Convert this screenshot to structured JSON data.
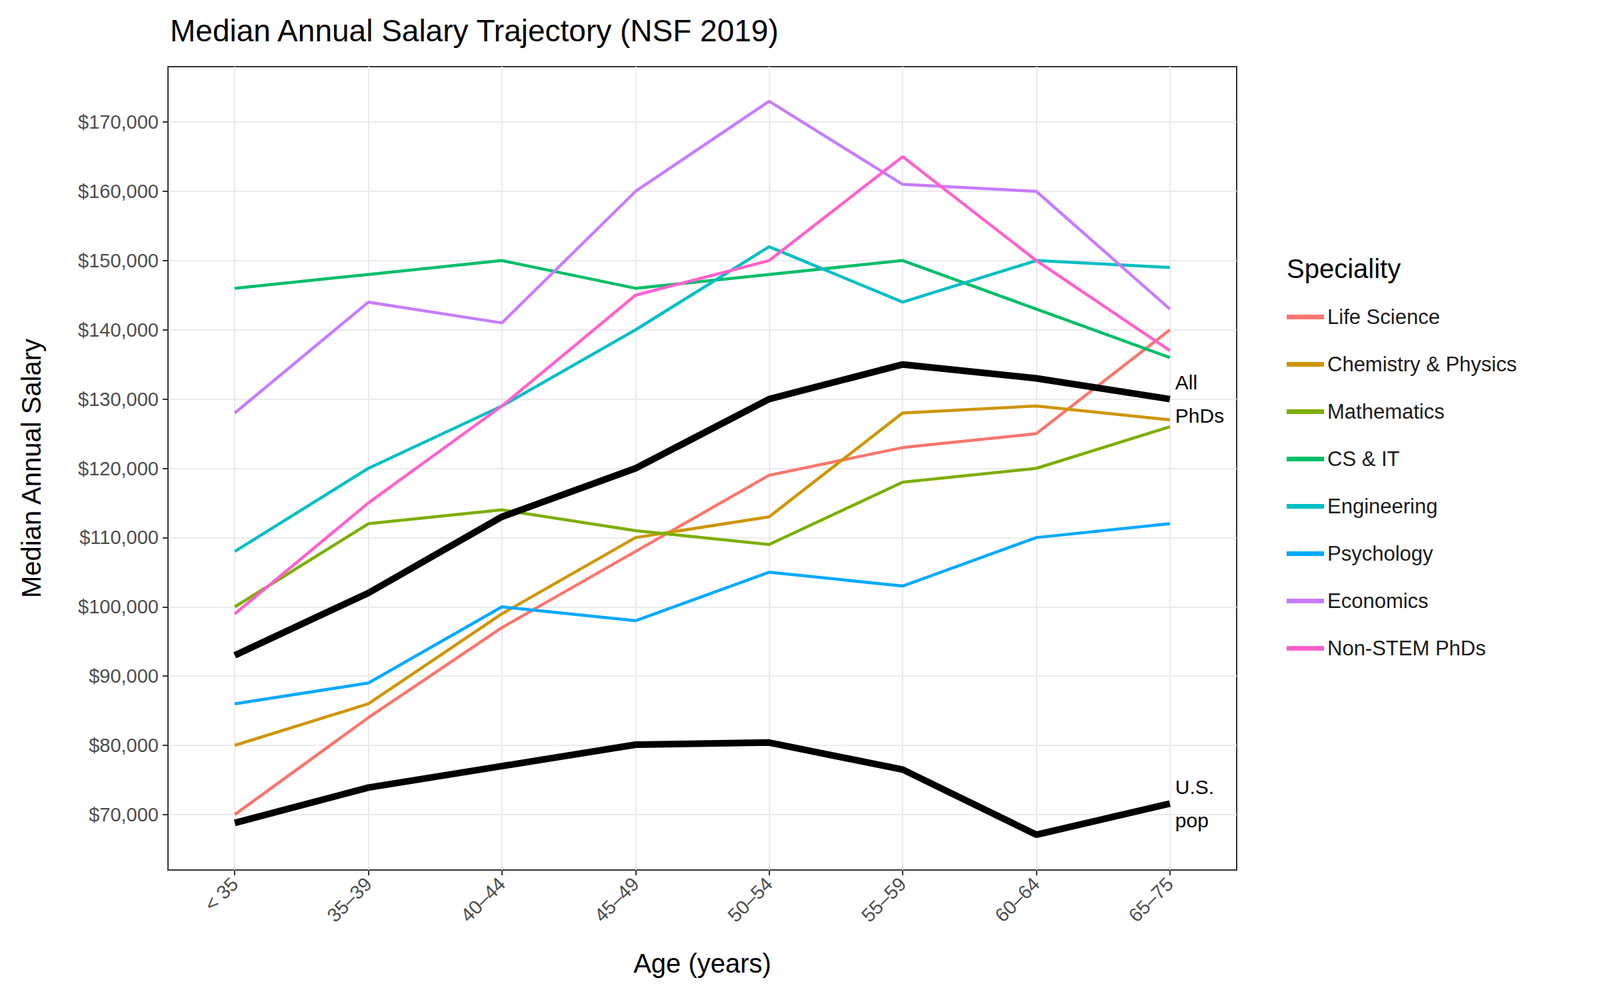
{
  "chart_data": {
    "type": "line",
    "title": "Median Annual Salary Trajectory (NSF 2019)",
    "x_label": "Age (years)",
    "y_label": "Median Annual Salary",
    "legend_title": "Speciality",
    "legend": "right",
    "grid": true,
    "categories": [
      "< 35",
      "35–39",
      "40–44",
      "45–49",
      "50–54",
      "55–59",
      "60–64",
      "65–75"
    ],
    "ylim": [
      62000,
      178000
    ],
    "yticks": [
      {
        "value": 70000,
        "label": "$70,000"
      },
      {
        "value": 80000,
        "label": "$80,000"
      },
      {
        "value": 90000,
        "label": "$90,000"
      },
      {
        "value": 100000,
        "label": "$100,000"
      },
      {
        "value": 110000,
        "label": "$110,000"
      },
      {
        "value": 120000,
        "label": "$120,000"
      },
      {
        "value": 130000,
        "label": "$130,000"
      },
      {
        "value": 140000,
        "label": "$140,000"
      },
      {
        "value": 150000,
        "label": "$150,000"
      },
      {
        "value": 160000,
        "label": "$160,000"
      },
      {
        "value": 170000,
        "label": "$170,000"
      }
    ],
    "series": [
      {
        "name": "Life Science",
        "color": "#F8766D",
        "line_style": "solid",
        "marker": "none",
        "values": [
          70000,
          84000,
          97000,
          108000,
          119000,
          123000,
          125000,
          140000
        ]
      },
      {
        "name": "Chemistry & Physics",
        "color": "#CD9600",
        "line_style": "solid",
        "marker": "none",
        "values": [
          80000,
          86000,
          99000,
          110000,
          113000,
          128000,
          129000,
          127000
        ]
      },
      {
        "name": "Mathematics",
        "color": "#7CAE00",
        "line_style": "solid",
        "marker": "none",
        "values": [
          100000,
          112000,
          114000,
          111000,
          109000,
          118000,
          120000,
          126000
        ]
      },
      {
        "name": "CS & IT",
        "color": "#00BE67",
        "line_style": "solid",
        "marker": "none",
        "values": [
          146000,
          148000,
          150000,
          146000,
          148000,
          150000,
          143000,
          136000
        ]
      },
      {
        "name": "Engineering",
        "color": "#00BFC4",
        "line_style": "solid",
        "marker": "none",
        "values": [
          108000,
          120000,
          129000,
          140000,
          152000,
          144000,
          150000,
          149000
        ]
      },
      {
        "name": "Psychology",
        "color": "#00A9FF",
        "line_style": "solid",
        "marker": "none",
        "values": [
          86000,
          89000,
          100000,
          98000,
          105000,
          103000,
          110000,
          112000
        ]
      },
      {
        "name": "Economics",
        "color": "#C77CFF",
        "line_style": "solid",
        "marker": "none",
        "values": [
          128000,
          144000,
          141000,
          160000,
          173000,
          161000,
          160000,
          143000
        ]
      },
      {
        "name": "Non-STEM PhDs",
        "color": "#FF61CC",
        "line_style": "solid",
        "marker": "none",
        "values": [
          99000,
          115000,
          129000,
          145000,
          150000,
          165000,
          150000,
          137000
        ]
      },
      {
        "name": "All PhDs",
        "color": "#000000",
        "line_style": "bold",
        "marker": "none",
        "values": [
          93000,
          102000,
          113000,
          120000,
          130000,
          135000,
          133000,
          130000
        ]
      },
      {
        "name": "U.S. pop",
        "color": "#000000",
        "line_style": "bold",
        "marker": "none",
        "values": [
          68800,
          73900,
          77000,
          80100,
          80400,
          76500,
          67100,
          71600
        ]
      }
    ]
  }
}
